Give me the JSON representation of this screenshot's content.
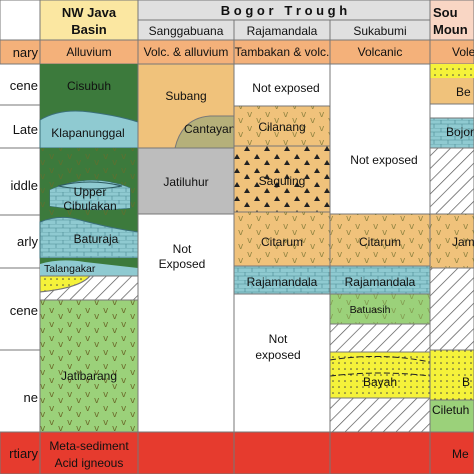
{
  "headers": {
    "nw_java_basin": [
      "NW Java",
      "Basin"
    ],
    "bogor_trough": "B o g o r   T r o u g h",
    "sanggabuana": "Sanggabuana",
    "rajamandala": "Rajamandala",
    "sukabumi": "Sukabumi",
    "southern_mountains": [
      "Sou",
      "Moun"
    ]
  },
  "ages": [
    "nary",
    "cene",
    "Late",
    "iddle",
    "arly",
    "cene",
    "ne",
    "rtiary"
  ],
  "formations": {
    "alluvium": "Alluvium",
    "volc_alluvium": "Volc. & alluvium",
    "tambakan_volc": "Tambakan & volc.",
    "volcanic": "Volcanic",
    "vole": "Vole",
    "cisubuh": "Cisubuh",
    "subang": "Subang",
    "not_exposed_raja": "Not exposed",
    "be": "Be",
    "klapanunggal": "Klapanunggal",
    "cantayan": "Cantayan",
    "cilanang": "Cilanang",
    "bojor": "Bojor",
    "upper_cibulakan": [
      "Upper",
      "Cibulakan"
    ],
    "jatiluhur": "Jatiluhur",
    "saguling": "Saguling",
    "not_exposed_suka": "Not exposed",
    "baturaja": "Baturaja",
    "not_exposed_sang": [
      "Not",
      "Exposed"
    ],
    "citarum_raja": "Citarum",
    "citarum_suka": "Citarum",
    "jam": "Jam",
    "talangakar": "Talangakar",
    "rajamandala_raja": "Rajamandala",
    "rajamandala_suka": "Rajamandala",
    "batuasih": "Batuasih",
    "not_exposed_raja2": [
      "Not",
      "exposed"
    ],
    "jatibarang": "Jatibarang",
    "bayah": "Bayah",
    "b": "B",
    "ciletuh": "Ciletuh",
    "meta_sediment": [
      "Meta-sediment",
      "Acid igneous"
    ],
    "me": "Me"
  },
  "colors": {
    "green": "#3c7a3c",
    "orange": "#f4b17a",
    "tan": "#f0c27b",
    "teal": "#8fcad1",
    "yellow": "#f5f23a",
    "gray": "#bdbdbd",
    "red": "#e63b2e",
    "header": "#e0e0e0",
    "nw_header": "#fbe7a1",
    "south_header": "#f9d6c4",
    "mound": "#b5b07a",
    "hatch": "#555555"
  }
}
